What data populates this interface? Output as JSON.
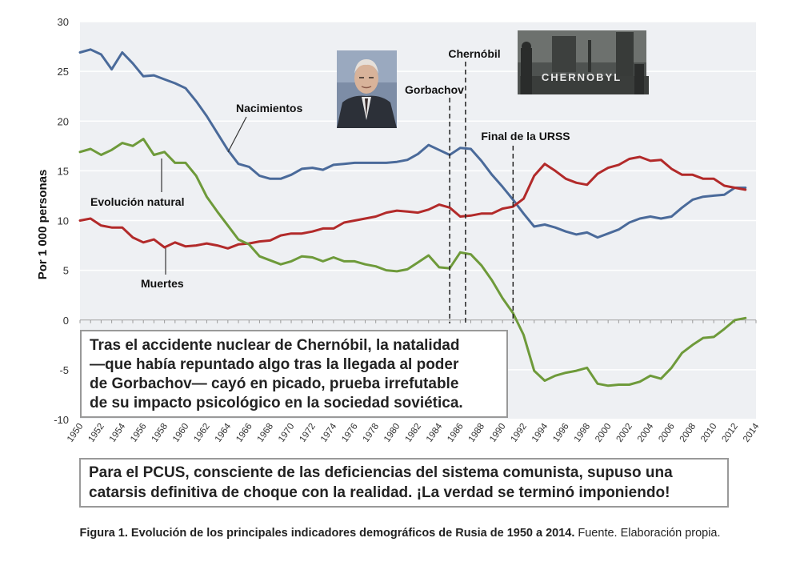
{
  "chart_data": {
    "type": "line",
    "ylabel": "Por 1 000 personas",
    "ylim": [
      -10,
      30
    ],
    "yticks": [
      -10,
      -5,
      0,
      5,
      10,
      15,
      20,
      25,
      30
    ],
    "xlim": [
      1950,
      2014
    ],
    "xticks": [
      "1950",
      "1952",
      "1954",
      "1956",
      "1958",
      "1960",
      "1962",
      "1964",
      "1966",
      "1968",
      "1970",
      "1972",
      "1974",
      "1976",
      "1978",
      "1980",
      "1982",
      "1984",
      "1986",
      "1988",
      "1990",
      "1992",
      "1994",
      "1996",
      "1998",
      "2000",
      "2002",
      "2004",
      "2006",
      "2008",
      "2010",
      "2012",
      "2014"
    ],
    "series": [
      {
        "name": "Nacimientos",
        "color": "#4a6a9a",
        "x": [
          1950,
          1951,
          1952,
          1953,
          1954,
          1955,
          1956,
          1957,
          1958,
          1959,
          1960,
          1961,
          1962,
          1963,
          1964,
          1965,
          1966,
          1967,
          1968,
          1969,
          1970,
          1971,
          1972,
          1973,
          1974,
          1975,
          1976,
          1977,
          1978,
          1979,
          1980,
          1981,
          1982,
          1983,
          1984,
          1985,
          1986,
          1987,
          1988,
          1989,
          1990,
          1991,
          1992,
          1993,
          1994,
          1995,
          1996,
          1997,
          1998,
          1999,
          2000,
          2001,
          2002,
          2003,
          2004,
          2005,
          2006,
          2007,
          2008,
          2009,
          2010,
          2011,
          2012,
          2013
        ],
        "values": [
          26.9,
          27.2,
          26.7,
          25.2,
          26.9,
          25.8,
          24.5,
          24.6,
          24.2,
          23.8,
          23.3,
          22.0,
          20.5,
          18.8,
          17.1,
          15.7,
          15.4,
          14.5,
          14.2,
          14.2,
          14.6,
          15.2,
          15.3,
          15.1,
          15.6,
          15.7,
          15.8,
          15.8,
          15.8,
          15.8,
          15.9,
          16.1,
          16.7,
          17.6,
          17.1,
          16.6,
          17.3,
          17.2,
          16.0,
          14.6,
          13.4,
          12.1,
          10.7,
          9.4,
          9.6,
          9.3,
          8.9,
          8.6,
          8.8,
          8.3,
          8.7,
          9.1,
          9.8,
          10.2,
          10.4,
          10.2,
          10.4,
          11.3,
          12.1,
          12.4,
          12.5,
          12.6,
          13.3,
          13.3
        ]
      },
      {
        "name": "Muertes",
        "color": "#b22a2a",
        "x": [
          1950,
          1951,
          1952,
          1953,
          1954,
          1955,
          1956,
          1957,
          1958,
          1959,
          1960,
          1961,
          1962,
          1963,
          1964,
          1965,
          1966,
          1967,
          1968,
          1969,
          1970,
          1971,
          1972,
          1973,
          1974,
          1975,
          1976,
          1977,
          1978,
          1979,
          1980,
          1981,
          1982,
          1983,
          1984,
          1985,
          1986,
          1987,
          1988,
          1989,
          1990,
          1991,
          1992,
          1993,
          1994,
          1995,
          1996,
          1997,
          1998,
          1999,
          2000,
          2001,
          2002,
          2003,
          2004,
          2005,
          2006,
          2007,
          2008,
          2009,
          2010,
          2011,
          2012,
          2013
        ],
        "values": [
          10.0,
          10.2,
          9.5,
          9.3,
          9.3,
          8.3,
          7.8,
          8.1,
          7.3,
          7.8,
          7.4,
          7.5,
          7.7,
          7.5,
          7.2,
          7.6,
          7.7,
          7.9,
          8.0,
          8.5,
          8.7,
          8.7,
          8.9,
          9.2,
          9.2,
          9.8,
          10.0,
          10.2,
          10.4,
          10.8,
          11.0,
          10.9,
          10.8,
          11.1,
          11.6,
          11.3,
          10.4,
          10.5,
          10.7,
          10.7,
          11.2,
          11.4,
          12.2,
          14.5,
          15.7,
          15.0,
          14.2,
          13.8,
          13.6,
          14.7,
          15.3,
          15.6,
          16.2,
          16.4,
          16.0,
          16.1,
          15.2,
          14.6,
          14.6,
          14.2,
          14.2,
          13.5,
          13.3,
          13.1
        ]
      },
      {
        "name": "Evolución natural",
        "color": "#6e9a3a",
        "x": [
          1950,
          1951,
          1952,
          1953,
          1954,
          1955,
          1956,
          1957,
          1958,
          1959,
          1960,
          1961,
          1962,
          1963,
          1964,
          1965,
          1966,
          1967,
          1968,
          1969,
          1970,
          1971,
          1972,
          1973,
          1974,
          1975,
          1976,
          1977,
          1978,
          1979,
          1980,
          1981,
          1982,
          1983,
          1984,
          1985,
          1986,
          1987,
          1988,
          1989,
          1990,
          1991,
          1992,
          1993,
          1994,
          1995,
          1996,
          1997,
          1998,
          1999,
          2000,
          2001,
          2002,
          2003,
          2004,
          2005,
          2006,
          2007,
          2008,
          2009,
          2010,
          2011,
          2012,
          2013
        ],
        "values": [
          16.9,
          17.2,
          16.6,
          17.1,
          17.8,
          17.5,
          18.2,
          16.6,
          16.9,
          15.8,
          15.8,
          14.5,
          12.4,
          10.9,
          9.5,
          8.1,
          7.6,
          6.4,
          6.0,
          5.6,
          5.9,
          6.4,
          6.3,
          5.9,
          6.3,
          5.9,
          5.9,
          5.6,
          5.4,
          5.0,
          4.9,
          5.1,
          5.8,
          6.5,
          5.3,
          5.2,
          6.8,
          6.6,
          5.5,
          4.0,
          2.2,
          0.7,
          -1.5,
          -5.1,
          -6.1,
          -5.6,
          -5.3,
          -5.1,
          -4.8,
          -6.4,
          -6.6,
          -6.5,
          -6.5,
          -6.2,
          -5.6,
          -5.9,
          -4.8,
          -3.3,
          -2.5,
          -1.8,
          -1.7,
          -0.9,
          0.0,
          0.2
        ]
      }
    ],
    "series_labels": [
      "Nacimientos",
      "Evolución natural",
      "Muertes"
    ],
    "annotations": [
      {
        "label": "Gorbachov",
        "x": 1985
      },
      {
        "label": "Chernóbil",
        "x": 1986.5
      },
      {
        "label": "Final de la URSS",
        "x": 1991
      }
    ]
  },
  "images": {
    "gorbachov_photo": "portrait",
    "chernobyl_poster": "CHERNOBYL"
  },
  "text_boxes": {
    "box1_lines": [
      "Tras el accidente nuclear de Chernóbil, la natalidad",
      "—que había repuntado algo tras la llegada al poder",
      "de Gorbachov— cayó en picado, prueba irrefutable",
      "de su impacto psicológico en la sociedad soviética."
    ],
    "box2_lines": [
      "Para el PCUS, consciente de las deficiencias del sistema comunista, supuso una",
      "catarsis definitiva de choque con la realidad. ¡La verdad se terminó imponiendo!"
    ]
  },
  "caption": {
    "bold": "Figura 1. Evolución de los principales indicadores demográficos de Rusia de 1950 a 2014.",
    "normal": " Fuente. Elaboración propia."
  }
}
